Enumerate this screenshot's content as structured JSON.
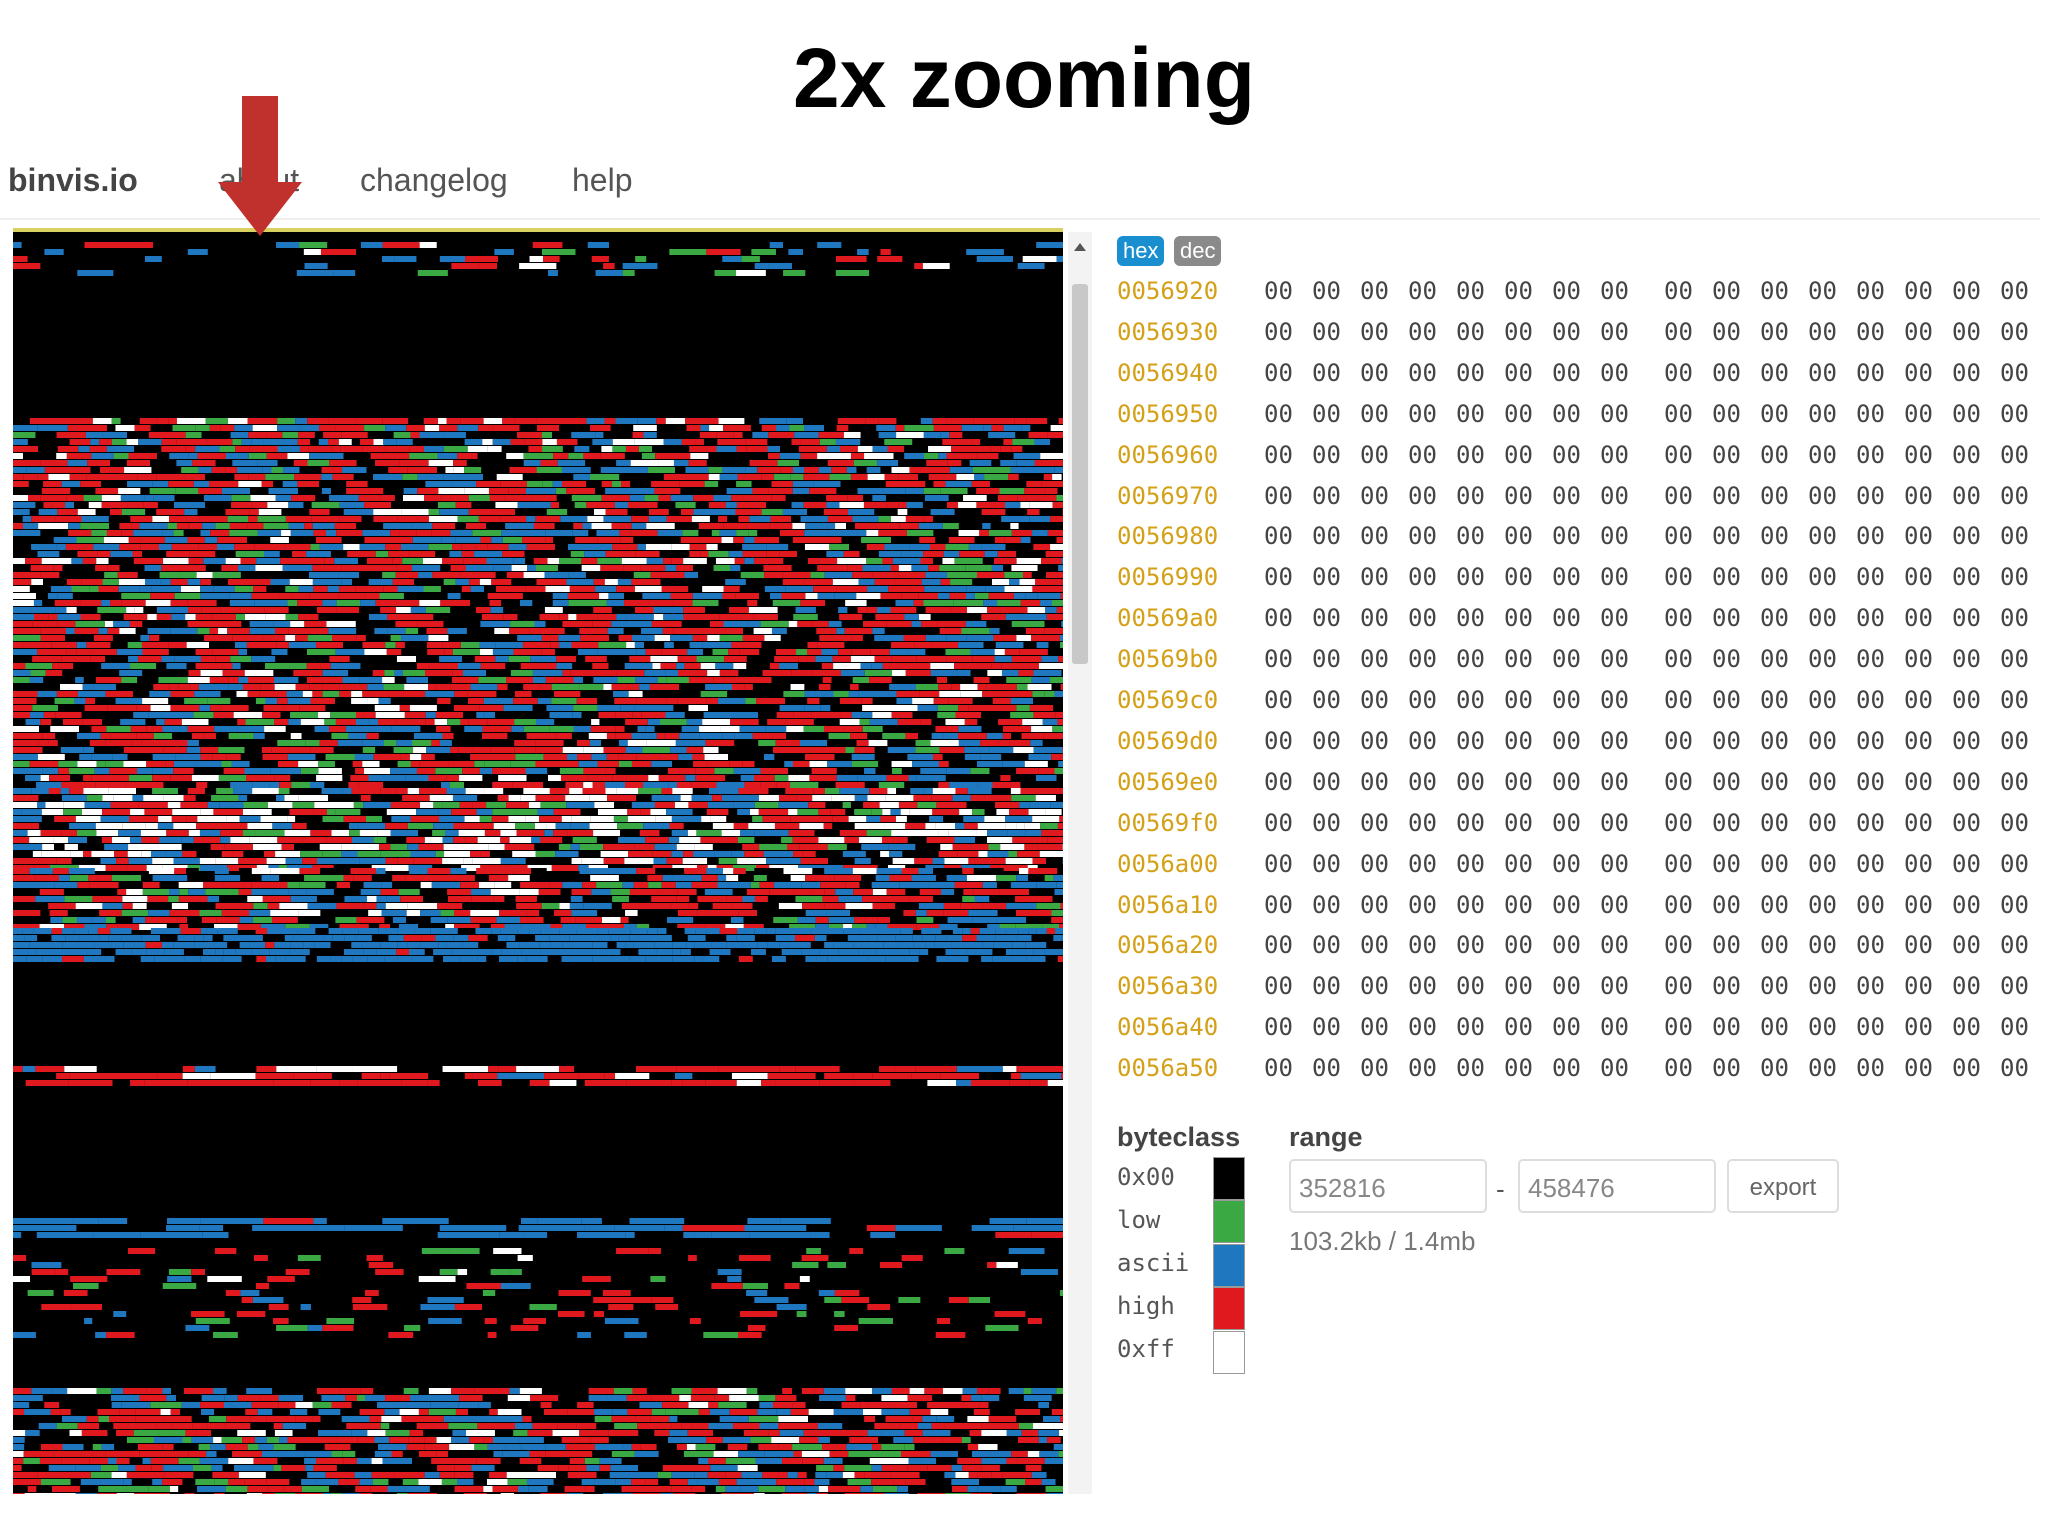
{
  "title": "2x zooming",
  "nav": {
    "brand": "binvis.io",
    "links": [
      "about",
      "changelog",
      "help"
    ]
  },
  "hexview": {
    "modes": [
      "hex",
      "dec"
    ],
    "rows": [
      {
        "offset": "0056920",
        "bytes": [
          "00",
          "00",
          "00",
          "00",
          "00",
          "00",
          "00",
          "00",
          "00",
          "00",
          "00",
          "00",
          "00",
          "00",
          "00",
          "00"
        ]
      },
      {
        "offset": "0056930",
        "bytes": [
          "00",
          "00",
          "00",
          "00",
          "00",
          "00",
          "00",
          "00",
          "00",
          "00",
          "00",
          "00",
          "00",
          "00",
          "00",
          "00"
        ]
      },
      {
        "offset": "0056940",
        "bytes": [
          "00",
          "00",
          "00",
          "00",
          "00",
          "00",
          "00",
          "00",
          "00",
          "00",
          "00",
          "00",
          "00",
          "00",
          "00",
          "00"
        ]
      },
      {
        "offset": "0056950",
        "bytes": [
          "00",
          "00",
          "00",
          "00",
          "00",
          "00",
          "00",
          "00",
          "00",
          "00",
          "00",
          "00",
          "00",
          "00",
          "00",
          "00"
        ]
      },
      {
        "offset": "0056960",
        "bytes": [
          "00",
          "00",
          "00",
          "00",
          "00",
          "00",
          "00",
          "00",
          "00",
          "00",
          "00",
          "00",
          "00",
          "00",
          "00",
          "00"
        ]
      },
      {
        "offset": "0056970",
        "bytes": [
          "00",
          "00",
          "00",
          "00",
          "00",
          "00",
          "00",
          "00",
          "00",
          "00",
          "00",
          "00",
          "00",
          "00",
          "00",
          "00"
        ]
      },
      {
        "offset": "0056980",
        "bytes": [
          "00",
          "00",
          "00",
          "00",
          "00",
          "00",
          "00",
          "00",
          "00",
          "00",
          "00",
          "00",
          "00",
          "00",
          "00",
          "00"
        ]
      },
      {
        "offset": "0056990",
        "bytes": [
          "00",
          "00",
          "00",
          "00",
          "00",
          "00",
          "00",
          "00",
          "00",
          "00",
          "00",
          "00",
          "00",
          "00",
          "00",
          "00"
        ]
      },
      {
        "offset": "00569a0",
        "bytes": [
          "00",
          "00",
          "00",
          "00",
          "00",
          "00",
          "00",
          "00",
          "00",
          "00",
          "00",
          "00",
          "00",
          "00",
          "00",
          "00"
        ]
      },
      {
        "offset": "00569b0",
        "bytes": [
          "00",
          "00",
          "00",
          "00",
          "00",
          "00",
          "00",
          "00",
          "00",
          "00",
          "00",
          "00",
          "00",
          "00",
          "00",
          "00"
        ]
      },
      {
        "offset": "00569c0",
        "bytes": [
          "00",
          "00",
          "00",
          "00",
          "00",
          "00",
          "00",
          "00",
          "00",
          "00",
          "00",
          "00",
          "00",
          "00",
          "00",
          "00"
        ]
      },
      {
        "offset": "00569d0",
        "bytes": [
          "00",
          "00",
          "00",
          "00",
          "00",
          "00",
          "00",
          "00",
          "00",
          "00",
          "00",
          "00",
          "00",
          "00",
          "00",
          "00"
        ]
      },
      {
        "offset": "00569e0",
        "bytes": [
          "00",
          "00",
          "00",
          "00",
          "00",
          "00",
          "00",
          "00",
          "00",
          "00",
          "00",
          "00",
          "00",
          "00",
          "00",
          "00"
        ]
      },
      {
        "offset": "00569f0",
        "bytes": [
          "00",
          "00",
          "00",
          "00",
          "00",
          "00",
          "00",
          "00",
          "00",
          "00",
          "00",
          "00",
          "00",
          "00",
          "00",
          "00"
        ]
      },
      {
        "offset": "0056a00",
        "bytes": [
          "00",
          "00",
          "00",
          "00",
          "00",
          "00",
          "00",
          "00",
          "00",
          "00",
          "00",
          "00",
          "00",
          "00",
          "00",
          "00"
        ]
      },
      {
        "offset": "0056a10",
        "bytes": [
          "00",
          "00",
          "00",
          "00",
          "00",
          "00",
          "00",
          "00",
          "00",
          "00",
          "00",
          "00",
          "00",
          "00",
          "00",
          "00"
        ]
      },
      {
        "offset": "0056a20",
        "bytes": [
          "00",
          "00",
          "00",
          "00",
          "00",
          "00",
          "00",
          "00",
          "00",
          "00",
          "00",
          "00",
          "00",
          "00",
          "00",
          "00"
        ]
      },
      {
        "offset": "0056a30",
        "bytes": [
          "00",
          "00",
          "00",
          "00",
          "00",
          "00",
          "00",
          "00",
          "00",
          "00",
          "00",
          "00",
          "00",
          "00",
          "00",
          "00"
        ]
      },
      {
        "offset": "0056a40",
        "bytes": [
          "00",
          "00",
          "00",
          "00",
          "00",
          "00",
          "00",
          "00",
          "00",
          "00",
          "00",
          "00",
          "00",
          "00",
          "00",
          "00"
        ]
      },
      {
        "offset": "0056a50",
        "bytes": [
          "00",
          "00",
          "00",
          "00",
          "00",
          "00",
          "00",
          "00",
          "00",
          "00",
          "00",
          "00",
          "00",
          "00",
          "00",
          "00"
        ]
      }
    ]
  },
  "byteclass": {
    "title": "byteclass",
    "classes": [
      {
        "label": "0x00",
        "color": "#000000"
      },
      {
        "label": "low",
        "color": "#3aa843"
      },
      {
        "label": "ascii",
        "color": "#1f77c0"
      },
      {
        "label": "high",
        "color": "#e0191f"
      },
      {
        "label": "0xff",
        "color": "#ffffff"
      }
    ]
  },
  "range": {
    "title": "range",
    "start": "352816",
    "separator": "-",
    "end": "458476",
    "export": "export",
    "size": "103.2kb / 1.4mb"
  }
}
